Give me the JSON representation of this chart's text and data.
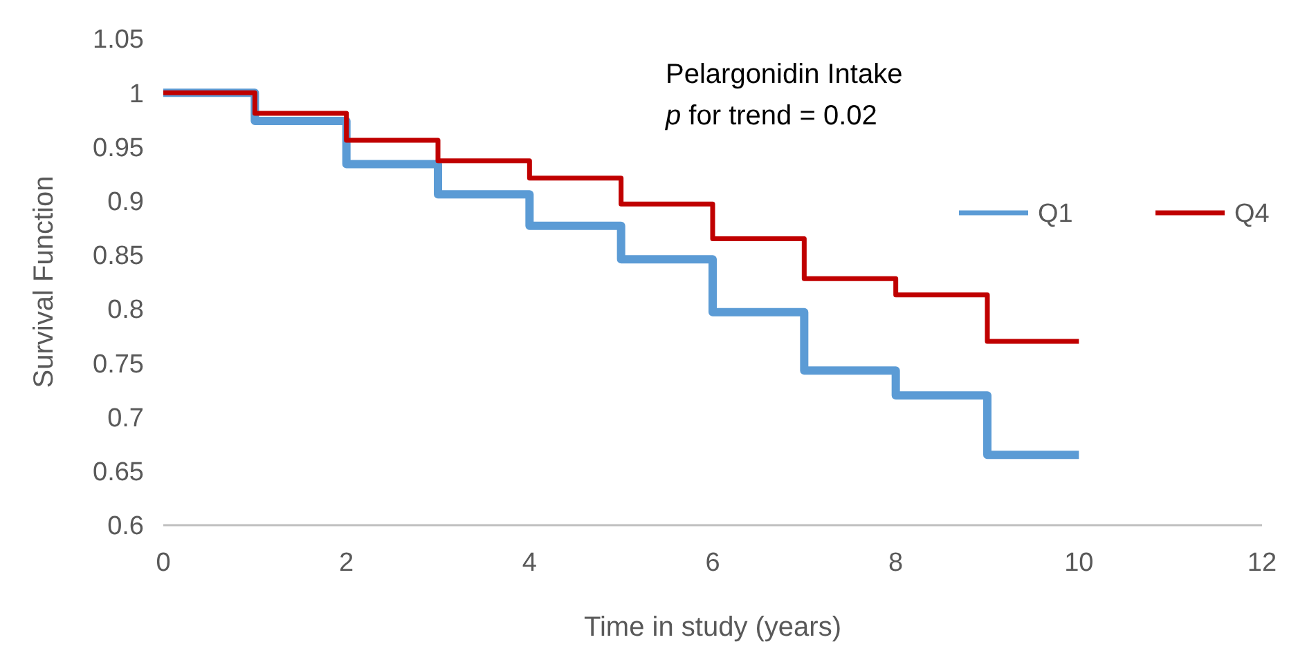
{
  "chart_data": {
    "type": "step",
    "xlabel": "Time in study (years)",
    "ylabel": "Survival Function",
    "annotations": [
      "Pelargonidin Intake",
      "p for trend = 0.02"
    ],
    "x": [
      0,
      1,
      2,
      3,
      4,
      5,
      6,
      7,
      8,
      9,
      10
    ],
    "series": [
      {
        "name": "Q1",
        "color": "#5b9bd5",
        "values": [
          1,
          0.974,
          0.934,
          0.906,
          0.877,
          0.846,
          0.797,
          0.743,
          0.72,
          0.665,
          0.665
        ]
      },
      {
        "name": "Q4",
        "color": "#c00000",
        "values": [
          1,
          0.981,
          0.956,
          0.937,
          0.921,
          0.897,
          0.865,
          0.828,
          0.813,
          0.77,
          0.77
        ]
      }
    ],
    "xlim": [
      0,
      12
    ],
    "xticks": [
      0,
      2,
      4,
      6,
      8,
      10,
      12
    ],
    "ylim": [
      0.6,
      1.05
    ],
    "yticks": [
      0.6,
      0.65,
      0.7,
      0.75,
      0.8,
      0.85,
      0.9,
      0.95,
      1,
      1.05
    ],
    "grid": false,
    "legend": "top right",
    "line_style": "solid",
    "marker": "none"
  }
}
